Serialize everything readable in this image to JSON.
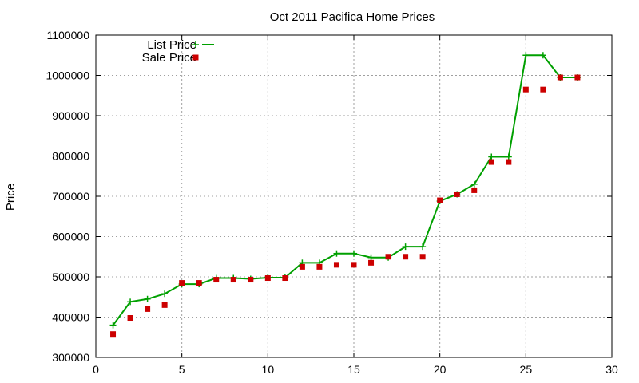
{
  "chart_data": {
    "type": "line",
    "title": "Oct 2011 Pacifica Home Prices",
    "xlabel": "",
    "ylabel": "Price",
    "xlim": [
      0,
      30
    ],
    "ylim": [
      300000,
      1100000
    ],
    "xticks": [
      0,
      5,
      10,
      15,
      20,
      25,
      30
    ],
    "yticks": [
      300000,
      400000,
      500000,
      600000,
      700000,
      800000,
      900000,
      1000000,
      1100000
    ],
    "grid": true,
    "legend": "top-left",
    "series": [
      {
        "name": "List Price",
        "style": "line-points",
        "color": "#00a000",
        "x": [
          1,
          2,
          3,
          4,
          5,
          6,
          7,
          8,
          9,
          10,
          11,
          12,
          13,
          14,
          15,
          16,
          17,
          18,
          19,
          20,
          21,
          22,
          23,
          24,
          25,
          26,
          27,
          28
        ],
        "values": [
          380000,
          438000,
          445000,
          458000,
          482000,
          482000,
          497000,
          497000,
          495000,
          498000,
          498000,
          535000,
          535000,
          558000,
          558000,
          548000,
          548000,
          575000,
          575000,
          688000,
          705000,
          730000,
          798000,
          798000,
          1050000,
          1050000,
          995000,
          995000
        ]
      },
      {
        "name": "Sale Price",
        "style": "points",
        "color": "#cc0000",
        "x": [
          1,
          2,
          3,
          4,
          5,
          6,
          7,
          8,
          9,
          10,
          11,
          12,
          13,
          14,
          15,
          16,
          17,
          18,
          19,
          20,
          21,
          22,
          23,
          24,
          25,
          26,
          27,
          28
        ],
        "values": [
          358000,
          398000,
          420000,
          430000,
          485000,
          485000,
          493000,
          493000,
          493000,
          497000,
          497000,
          525000,
          525000,
          530000,
          530000,
          535000,
          550000,
          550000,
          550000,
          690000,
          705000,
          715000,
          785000,
          785000,
          965000,
          965000,
          995000,
          995000
        ]
      }
    ]
  }
}
